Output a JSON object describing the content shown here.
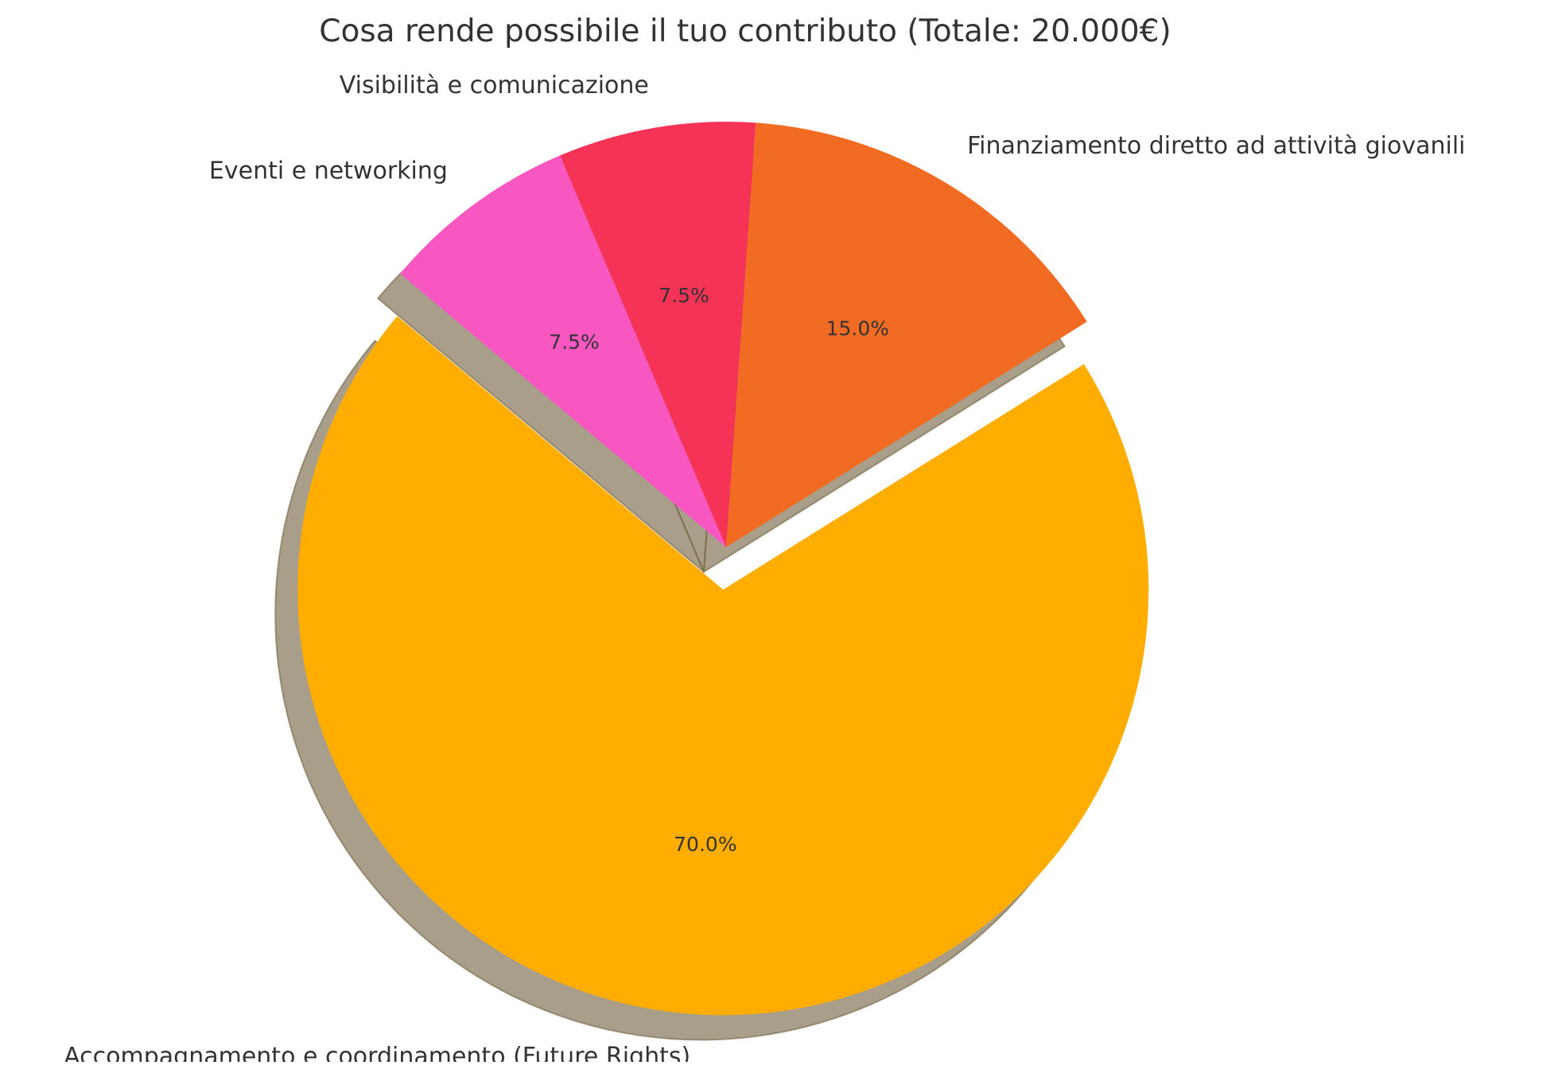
{
  "chart_data": {
    "type": "pie",
    "title": "Cosa rende possibile il tuo contributo (Totale: 20.000€)",
    "start_angle_deg": 140,
    "direction": "counterclockwise",
    "shadow": true,
    "legend": "none",
    "slices": [
      {
        "label": "Accompagnamento e coordinamento (Future Rights)",
        "value": 70.0,
        "pct_label": "70.0%",
        "color": "#FFAE01",
        "explode": 0.1
      },
      {
        "label": "Finanziamento diretto ad attività giovanili",
        "value": 15.0,
        "pct_label": "15.0%",
        "color": "#F26B22",
        "explode": 0
      },
      {
        "label": "Visibilità e comunicazione",
        "value": 7.5,
        "pct_label": "7.5%",
        "color": "#F53356",
        "explode": 0
      },
      {
        "label": "Eventi e networking",
        "value": 7.5,
        "pct_label": "7.5%",
        "color": "#F857C1",
        "explode": 0
      }
    ],
    "shadow_color": "#7a6a4a",
    "text_color": "#333333"
  }
}
